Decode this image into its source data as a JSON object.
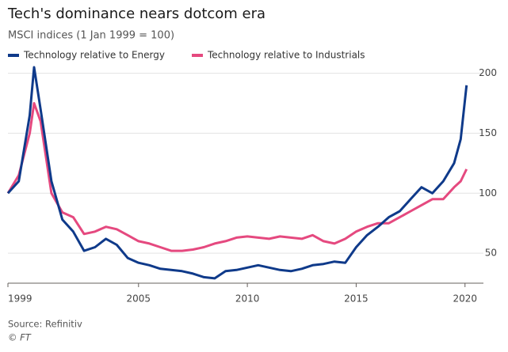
{
  "chart_data": {
    "type": "line",
    "title": "Tech's dominance nears dotcom era",
    "subtitle": "MSCI indices (1 Jan 1999 = 100)",
    "x": [
      1999,
      1999.5,
      2000,
      2000.2,
      2000.5,
      2001,
      2001.5,
      2002,
      2002.5,
      2003,
      2003.5,
      2004,
      2004.5,
      2005,
      2005.5,
      2006,
      2006.5,
      2007,
      2007.5,
      2008,
      2008.5,
      2009,
      2009.5,
      2010,
      2010.5,
      2011,
      2011.5,
      2012,
      2012.5,
      2013,
      2013.5,
      2014,
      2014.5,
      2015,
      2015.5,
      2016,
      2016.5,
      2017,
      2017.5,
      2018,
      2018.5,
      2019,
      2019.5,
      2019.8,
      2020.07
    ],
    "series": [
      {
        "name": "Technology relative to Energy",
        "color": "#0f3a8a",
        "values": [
          100,
          110,
          165,
          205,
          170,
          110,
          78,
          68,
          52,
          55,
          62,
          57,
          46,
          42,
          40,
          37,
          36,
          35,
          33,
          30,
          29,
          35,
          36,
          38,
          40,
          38,
          36,
          35,
          37,
          40,
          41,
          43,
          42,
          55,
          65,
          72,
          80,
          85,
          95,
          105,
          100,
          110,
          125,
          145,
          190
        ]
      },
      {
        "name": "Technology relative to Industrials",
        "color": "#e5497f",
        "values": [
          100,
          115,
          150,
          175,
          160,
          100,
          84,
          80,
          66,
          68,
          72,
          70,
          65,
          60,
          58,
          55,
          52,
          52,
          53,
          55,
          58,
          60,
          63,
          64,
          63,
          62,
          64,
          63,
          62,
          65,
          60,
          58,
          62,
          68,
          72,
          75,
          75,
          80,
          85,
          90,
          95,
          95,
          105,
          110,
          120
        ]
      }
    ],
    "xlim": [
      1999,
      2020.1
    ],
    "xticks": [
      1999,
      2005,
      2010,
      2015,
      2020
    ],
    "ylim": [
      25,
      205
    ],
    "yticks": [
      50,
      100,
      150,
      200
    ],
    "grid": true,
    "source": "Source: Refinitiv",
    "credit": "© FT"
  }
}
